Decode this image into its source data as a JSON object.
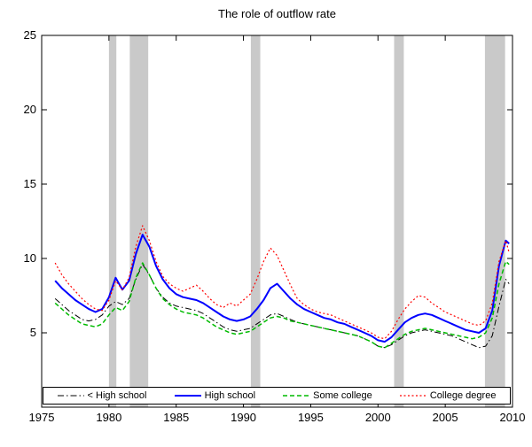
{
  "chart_data": {
    "type": "line",
    "title": "The role of outflow rate",
    "xlabel": "",
    "ylabel": "",
    "xlim": [
      1975,
      2010
    ],
    "ylim": [
      0,
      25
    ],
    "xticks": [
      1975,
      1980,
      1985,
      1990,
      1995,
      2000,
      2005,
      2010
    ],
    "yticks": [
      5,
      10,
      15,
      20,
      25
    ],
    "grid": false,
    "legend_position": "bottom-inside-horizontal",
    "band_color": "#c9c9c9",
    "axis_color": "#000000",
    "recession_bands": [
      [
        1980.0,
        1980.55
      ],
      [
        1981.55,
        1982.92
      ],
      [
        1990.55,
        1991.25
      ],
      [
        2001.2,
        2001.92
      ],
      [
        2007.95,
        2009.45
      ]
    ],
    "x": [
      1976,
      1976.5,
      1977,
      1977.5,
      1978,
      1978.5,
      1979,
      1979.5,
      1980,
      1980.5,
      1981,
      1981.5,
      1982,
      1982.5,
      1983,
      1983.5,
      1984,
      1984.5,
      1985,
      1985.5,
      1986,
      1986.5,
      1987,
      1987.5,
      1988,
      1988.5,
      1989,
      1989.5,
      1990,
      1990.5,
      1991,
      1991.5,
      1992,
      1992.5,
      1993,
      1993.5,
      1994,
      1994.5,
      1995,
      1995.5,
      1996,
      1996.5,
      1997,
      1997.5,
      1998,
      1998.5,
      1999,
      1999.5,
      2000,
      2000.5,
      2001,
      2001.5,
      2002,
      2002.5,
      2003,
      2003.5,
      2004,
      2004.5,
      2005,
      2005.5,
      2006,
      2006.5,
      2007,
      2007.5,
      2008,
      2008.5,
      2009,
      2009.5,
      2009.75
    ],
    "series": [
      {
        "name": "< High school",
        "color": "#000000",
        "style": "dash-dot",
        "dash": "7,3,1.5,3",
        "width": 1,
        "values": [
          7.3,
          6.9,
          6.5,
          6.2,
          5.9,
          5.8,
          5.9,
          6.2,
          6.8,
          7.1,
          6.9,
          7.3,
          8.6,
          9.6,
          8.9,
          8.0,
          7.4,
          7.0,
          6.8,
          6.7,
          6.6,
          6.5,
          6.3,
          6.0,
          5.7,
          5.4,
          5.2,
          5.1,
          5.2,
          5.3,
          5.6,
          5.9,
          6.2,
          6.3,
          6.1,
          5.9,
          5.7,
          5.6,
          5.5,
          5.4,
          5.3,
          5.2,
          5.1,
          5.0,
          4.9,
          4.8,
          4.6,
          4.4,
          4.1,
          4.0,
          4.2,
          4.5,
          4.8,
          5.0,
          5.1,
          5.2,
          5.1,
          5.0,
          4.9,
          4.8,
          4.6,
          4.4,
          4.2,
          4.0,
          4.1,
          4.8,
          6.8,
          8.6,
          8.3
        ]
      },
      {
        "name": "High school",
        "color": "#0000ff",
        "style": "solid",
        "dash": "",
        "width": 2,
        "values": [
          8.5,
          8.0,
          7.6,
          7.2,
          6.9,
          6.6,
          6.4,
          6.6,
          7.4,
          8.7,
          7.9,
          8.5,
          10.3,
          11.6,
          10.8,
          9.5,
          8.6,
          8.0,
          7.6,
          7.4,
          7.3,
          7.2,
          7.0,
          6.7,
          6.4,
          6.1,
          5.9,
          5.8,
          5.9,
          6.1,
          6.6,
          7.2,
          8.0,
          8.3,
          7.8,
          7.3,
          6.9,
          6.6,
          6.4,
          6.2,
          6.0,
          5.9,
          5.7,
          5.6,
          5.4,
          5.2,
          5.0,
          4.8,
          4.5,
          4.4,
          4.7,
          5.2,
          5.7,
          6.0,
          6.2,
          6.3,
          6.2,
          6.0,
          5.8,
          5.6,
          5.4,
          5.2,
          5.1,
          5.0,
          5.3,
          6.5,
          9.5,
          11.2,
          11.0
        ]
      },
      {
        "name": "Some college",
        "color": "#00bb00",
        "style": "dashed",
        "dash": "5,3",
        "width": 1.5,
        "values": [
          7.0,
          6.6,
          6.2,
          5.9,
          5.6,
          5.5,
          5.4,
          5.6,
          6.2,
          6.7,
          6.5,
          7.1,
          8.7,
          9.7,
          8.9,
          8.0,
          7.3,
          6.9,
          6.6,
          6.4,
          6.3,
          6.2,
          6.0,
          5.7,
          5.4,
          5.2,
          5.0,
          4.9,
          5.0,
          5.1,
          5.4,
          5.7,
          6.0,
          6.1,
          6.0,
          5.8,
          5.7,
          5.6,
          5.5,
          5.4,
          5.3,
          5.2,
          5.1,
          5.0,
          4.9,
          4.8,
          4.6,
          4.4,
          4.1,
          4.0,
          4.3,
          4.6,
          4.9,
          5.1,
          5.2,
          5.3,
          5.2,
          5.1,
          5.0,
          4.9,
          4.8,
          4.7,
          4.6,
          4.7,
          5.0,
          6.0,
          8.3,
          9.8,
          9.6
        ]
      },
      {
        "name": "College degree",
        "color": "#ff0000",
        "style": "dotted",
        "dash": "2,2.5",
        "width": 1.2,
        "values": [
          9.7,
          8.9,
          8.3,
          7.8,
          7.3,
          6.9,
          6.6,
          6.5,
          7.2,
          8.5,
          7.9,
          8.7,
          10.8,
          12.2,
          11.2,
          9.8,
          8.8,
          8.3,
          8.0,
          7.8,
          8.0,
          8.2,
          7.8,
          7.3,
          6.9,
          6.7,
          7.0,
          6.8,
          7.2,
          7.6,
          8.6,
          9.8,
          10.7,
          10.2,
          9.2,
          8.2,
          7.3,
          6.9,
          6.6,
          6.4,
          6.3,
          6.2,
          6.0,
          5.8,
          5.6,
          5.4,
          5.2,
          5.0,
          4.7,
          4.6,
          5.1,
          5.9,
          6.6,
          7.1,
          7.5,
          7.4,
          7.0,
          6.7,
          6.4,
          6.2,
          6.0,
          5.8,
          5.6,
          5.5,
          5.8,
          7.0,
          9.8,
          11.2,
          10.4
        ]
      }
    ]
  }
}
